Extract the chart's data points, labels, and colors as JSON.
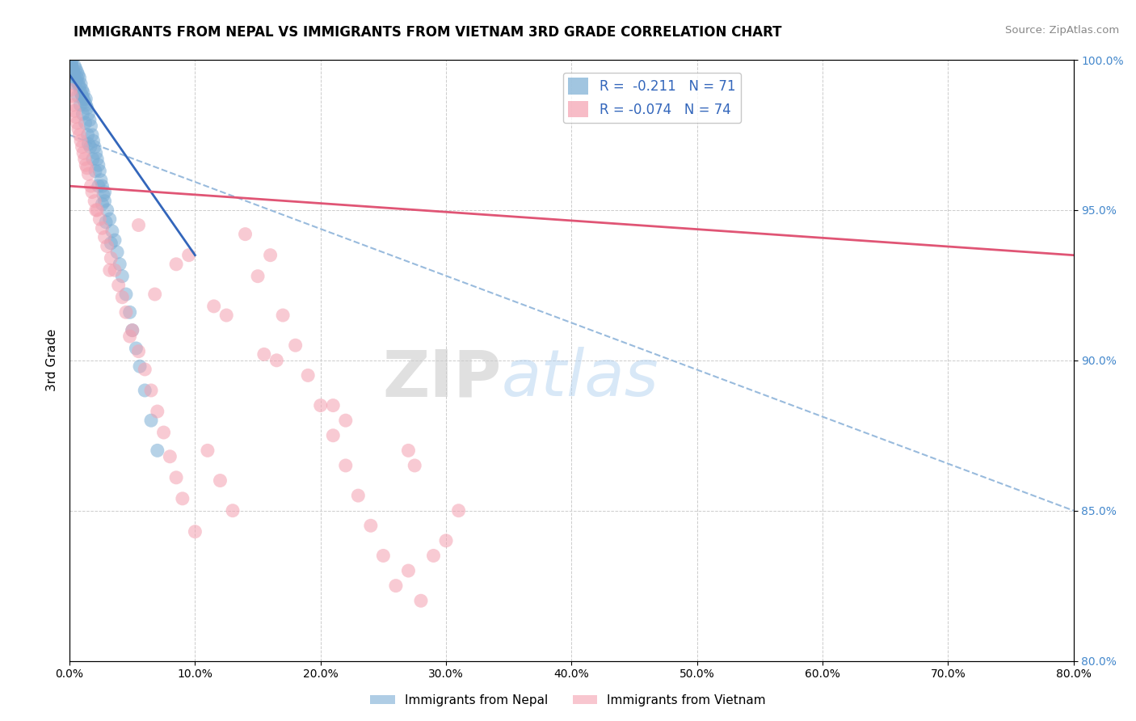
{
  "title": "IMMIGRANTS FROM NEPAL VS IMMIGRANTS FROM VIETNAM 3RD GRADE CORRELATION CHART",
  "source": "Source: ZipAtlas.com",
  "xlabel": "",
  "ylabel": "3rd Grade",
  "legend_nepal": "Immigrants from Nepal",
  "legend_vietnam": "Immigrants from Vietnam",
  "r_nepal": "-0.211",
  "n_nepal": "71",
  "r_vietnam": "-0.074",
  "n_vietnam": "74",
  "xlim": [
    0.0,
    80.0
  ],
  "ylim": [
    80.0,
    100.0
  ],
  "color_nepal": "#7AADD4",
  "color_vietnam": "#F4A0B0",
  "color_trend_nepal": "#3366BB",
  "color_trend_vietnam": "#E05575",
  "color_dashed": "#99BBDD",
  "background_color": "#FFFFFF",
  "nepal_points_x": [
    0.1,
    0.15,
    0.2,
    0.25,
    0.3,
    0.35,
    0.4,
    0.5,
    0.5,
    0.6,
    0.6,
    0.7,
    0.7,
    0.8,
    0.8,
    0.9,
    0.9,
    1.0,
    1.0,
    1.1,
    1.1,
    1.2,
    1.3,
    1.3,
    1.4,
    1.5,
    1.6,
    1.7,
    1.8,
    1.9,
    2.0,
    2.1,
    2.2,
    2.3,
    2.4,
    2.5,
    2.6,
    2.7,
    2.8,
    3.0,
    3.2,
    3.4,
    3.6,
    3.8,
    4.0,
    4.2,
    4.5,
    4.8,
    5.0,
    5.3,
    5.6,
    6.0,
    6.5,
    7.0,
    0.15,
    0.25,
    0.45,
    0.65,
    0.85,
    1.05,
    1.25,
    1.45,
    1.65,
    1.85,
    2.05,
    2.3,
    2.6,
    2.9,
    3.3,
    1.5,
    2.8
  ],
  "nepal_points_y": [
    99.8,
    99.9,
    100.0,
    99.7,
    99.6,
    99.5,
    99.8,
    99.3,
    99.7,
    99.4,
    99.6,
    99.2,
    99.5,
    99.1,
    99.4,
    98.9,
    99.2,
    98.8,
    99.0,
    98.7,
    98.9,
    98.6,
    98.5,
    98.7,
    98.4,
    98.2,
    98.0,
    97.8,
    97.5,
    97.3,
    97.1,
    96.9,
    96.7,
    96.5,
    96.3,
    96.0,
    95.8,
    95.5,
    95.3,
    95.0,
    94.7,
    94.3,
    94.0,
    93.6,
    93.2,
    92.8,
    92.2,
    91.6,
    91.0,
    90.4,
    89.8,
    89.0,
    88.0,
    87.0,
    99.8,
    99.6,
    99.2,
    98.8,
    98.5,
    98.2,
    97.9,
    97.5,
    97.1,
    96.7,
    96.3,
    95.8,
    95.2,
    94.6,
    93.9,
    97.2,
    95.6
  ],
  "vietnam_points_x": [
    0.1,
    0.2,
    0.3,
    0.4,
    0.5,
    0.6,
    0.7,
    0.8,
    0.9,
    1.0,
    1.1,
    1.2,
    1.4,
    1.5,
    1.7,
    1.8,
    2.0,
    2.2,
    2.4,
    2.6,
    2.8,
    3.0,
    3.3,
    3.6,
    3.9,
    4.2,
    4.5,
    5.0,
    5.5,
    6.0,
    6.5,
    7.0,
    7.5,
    8.0,
    8.5,
    9.0,
    10.0,
    11.0,
    12.0,
    13.0,
    14.0,
    15.0,
    16.0,
    17.0,
    18.0,
    19.0,
    20.0,
    21.0,
    22.0,
    23.0,
    24.0,
    25.0,
    26.0,
    27.0,
    28.0,
    29.0,
    30.0,
    31.0,
    1.3,
    2.1,
    3.2,
    4.8,
    6.8,
    9.5,
    12.5,
    16.5,
    22.0,
    27.5,
    5.5,
    8.5,
    11.5,
    15.5,
    21.0,
    27.0
  ],
  "vietnam_points_y": [
    99.0,
    98.8,
    98.5,
    98.3,
    98.1,
    97.9,
    97.7,
    97.5,
    97.3,
    97.1,
    96.9,
    96.7,
    96.4,
    96.2,
    95.8,
    95.6,
    95.3,
    95.0,
    94.7,
    94.4,
    94.1,
    93.8,
    93.4,
    93.0,
    92.5,
    92.1,
    91.6,
    91.0,
    90.3,
    89.7,
    89.0,
    88.3,
    87.6,
    86.8,
    86.1,
    85.4,
    84.3,
    87.0,
    86.0,
    85.0,
    94.2,
    92.8,
    93.5,
    91.5,
    90.5,
    89.5,
    88.5,
    87.5,
    86.5,
    85.5,
    84.5,
    83.5,
    82.5,
    83.0,
    82.0,
    83.5,
    84.0,
    85.0,
    96.5,
    95.0,
    93.0,
    90.8,
    92.2,
    93.5,
    91.5,
    90.0,
    88.0,
    86.5,
    94.5,
    93.2,
    91.8,
    90.2,
    88.5,
    87.0
  ],
  "nepal_trend_x0": 0.0,
  "nepal_trend_y0": 99.5,
  "nepal_trend_x1": 10.0,
  "nepal_trend_y1": 93.5,
  "vietnam_trend_x0": 0.0,
  "vietnam_trend_y0": 95.8,
  "vietnam_trend_x1": 80.0,
  "vietnam_trend_y1": 93.5,
  "dashed_trend_x0": 0.0,
  "dashed_trend_y0": 97.5,
  "dashed_trend_x1": 80.0,
  "dashed_trend_y1": 85.0,
  "watermark_zip": "ZIP",
  "watermark_atlas": "atlas",
  "title_fontsize": 12,
  "axis_label_fontsize": 11,
  "tick_fontsize": 10
}
